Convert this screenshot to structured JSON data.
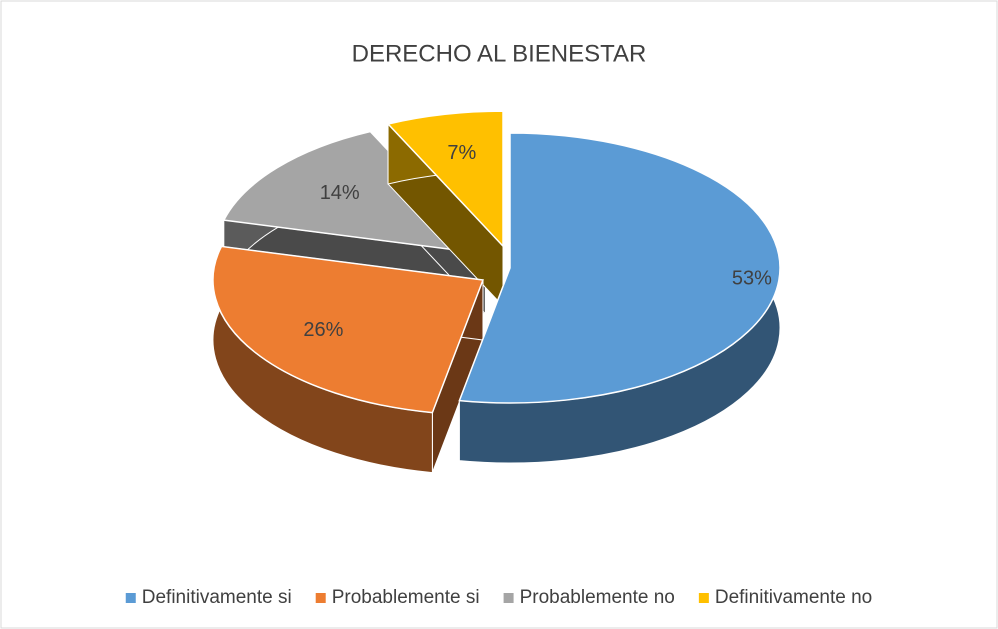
{
  "chart_data": {
    "type": "pie",
    "title": "DERECHO AL BIENESTAR",
    "categories": [
      "Definitivamente si",
      "Probablemente si",
      "Probablemente no",
      "Definitivamente no"
    ],
    "values": [
      53,
      26,
      14,
      7
    ],
    "value_labels": [
      "53%",
      "26%",
      "14%",
      "7%"
    ],
    "colors": [
      "#5b9bd5",
      "#ed7d31",
      "#a5a5a5",
      "#ffc000"
    ],
    "legend": "bottom"
  }
}
